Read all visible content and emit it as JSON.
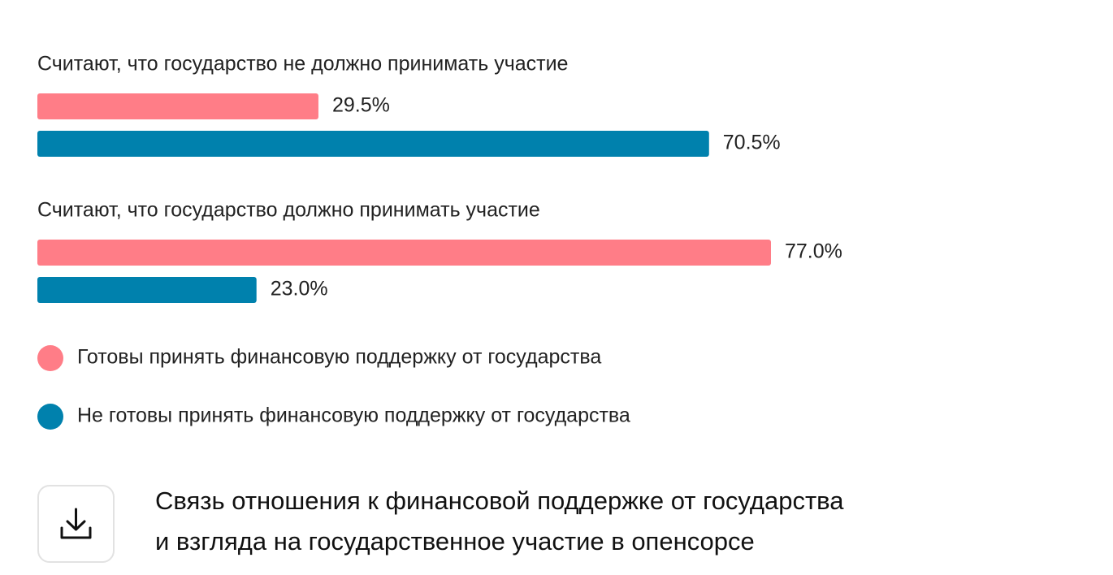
{
  "chart_data": {
    "type": "bar",
    "orientation": "horizontal",
    "legend": "bottom",
    "categories": [
      "Считают, что государство не должно принимать участие",
      "Считают, что государство должно принимать участие"
    ],
    "series": [
      {
        "name": "Готовы принять финансовую поддержку от государства",
        "color": "#ff7d87",
        "values": [
          29.5,
          77
        ],
        "value_labels": [
          "29.5%",
          "77.0%"
        ]
      },
      {
        "name": "Не готовы принять финансовую поддержку от государства",
        "color": "#0081ad",
        "values": [
          70.5,
          23
        ],
        "value_labels": [
          "70.5%",
          "23.0%"
        ]
      }
    ]
  },
  "footer": {
    "caption_lines": [
      "Связь отношения к финансовой поддержке от государства",
      "и взгляда на государственное участие в опенсорсе"
    ]
  }
}
